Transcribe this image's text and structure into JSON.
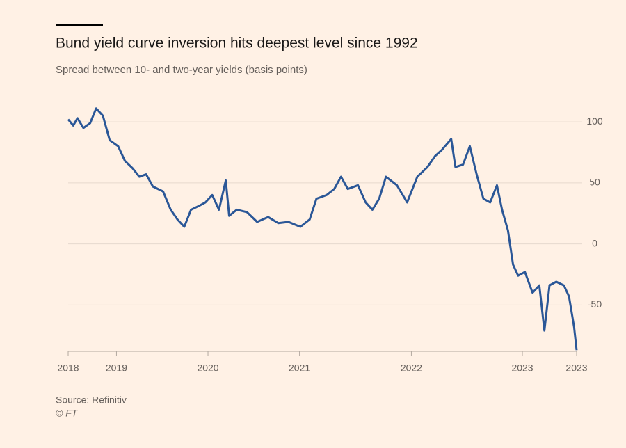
{
  "chart_data": {
    "type": "line",
    "title": "Bund yield curve inversion hits deepest level since 1992",
    "subtitle": "Spread between 10- and two-year yields (basis points)",
    "source": "Source: Refinitiv",
    "credit": "© FT",
    "x": [
      0,
      0.6,
      1.1,
      1.8,
      2.6,
      3.3,
      4.1,
      4.9,
      5.9,
      6.7,
      7.6,
      8.4,
      9.2,
      10.0,
      11.2,
      12.1,
      12.9,
      13.7,
      14.5,
      15.4,
      16.2,
      17.0,
      17.8,
      18.6,
      19.0,
      19.9,
      21.1,
      22.3,
      23.6,
      24.8,
      26.0,
      27.4,
      28.5,
      29.3,
      30.5,
      31.4,
      32.2,
      33.0,
      34.2,
      35.1,
      35.9,
      36.7,
      37.5,
      38.8,
      40.0,
      41.2,
      42.4,
      43.3,
      44.1,
      45.2,
      45.7,
      46.6,
      47.4,
      48.2,
      49.0,
      49.8,
      50.6,
      51.2,
      51.9,
      52.5,
      53.1,
      53.9,
      54.8,
      55.6,
      56.2,
      56.8,
      57.6,
      58.5,
      59.1,
      59.7,
      60.0
    ],
    "series": [
      {
        "name": "Spread",
        "color": "#2b5797",
        "values": [
          102,
          97,
          103,
          95,
          99,
          111,
          105,
          85,
          80,
          68,
          62,
          55,
          57,
          47,
          43,
          28,
          20,
          14,
          28,
          31,
          34,
          40,
          28,
          52,
          23,
          28,
          26,
          18,
          22,
          17,
          18,
          14,
          20,
          37,
          40,
          45,
          55,
          45,
          48,
          34,
          28,
          37,
          55,
          48,
          34,
          55,
          63,
          72,
          77,
          86,
          63,
          65,
          80,
          57,
          37,
          34,
          48,
          28,
          11,
          -17,
          -26,
          -23,
          -40,
          -34,
          -71,
          -34,
          -31,
          -34,
          -43,
          -68,
          -87
        ]
      }
    ],
    "xlim": [
      0,
      60
    ],
    "xticks": [
      {
        "value": 0,
        "label": "2018"
      },
      {
        "value": 5.7,
        "label": "2019"
      },
      {
        "value": 16.5,
        "label": "2020"
      },
      {
        "value": 27.3,
        "label": "2021"
      },
      {
        "value": 40.5,
        "label": "2022"
      },
      {
        "value": 53.6,
        "label": "2023"
      },
      {
        "value": 60,
        "label": "2023"
      }
    ],
    "ylim": [
      -88,
      120
    ],
    "yticks": [
      100,
      50,
      0,
      -50
    ],
    "grid": true
  }
}
